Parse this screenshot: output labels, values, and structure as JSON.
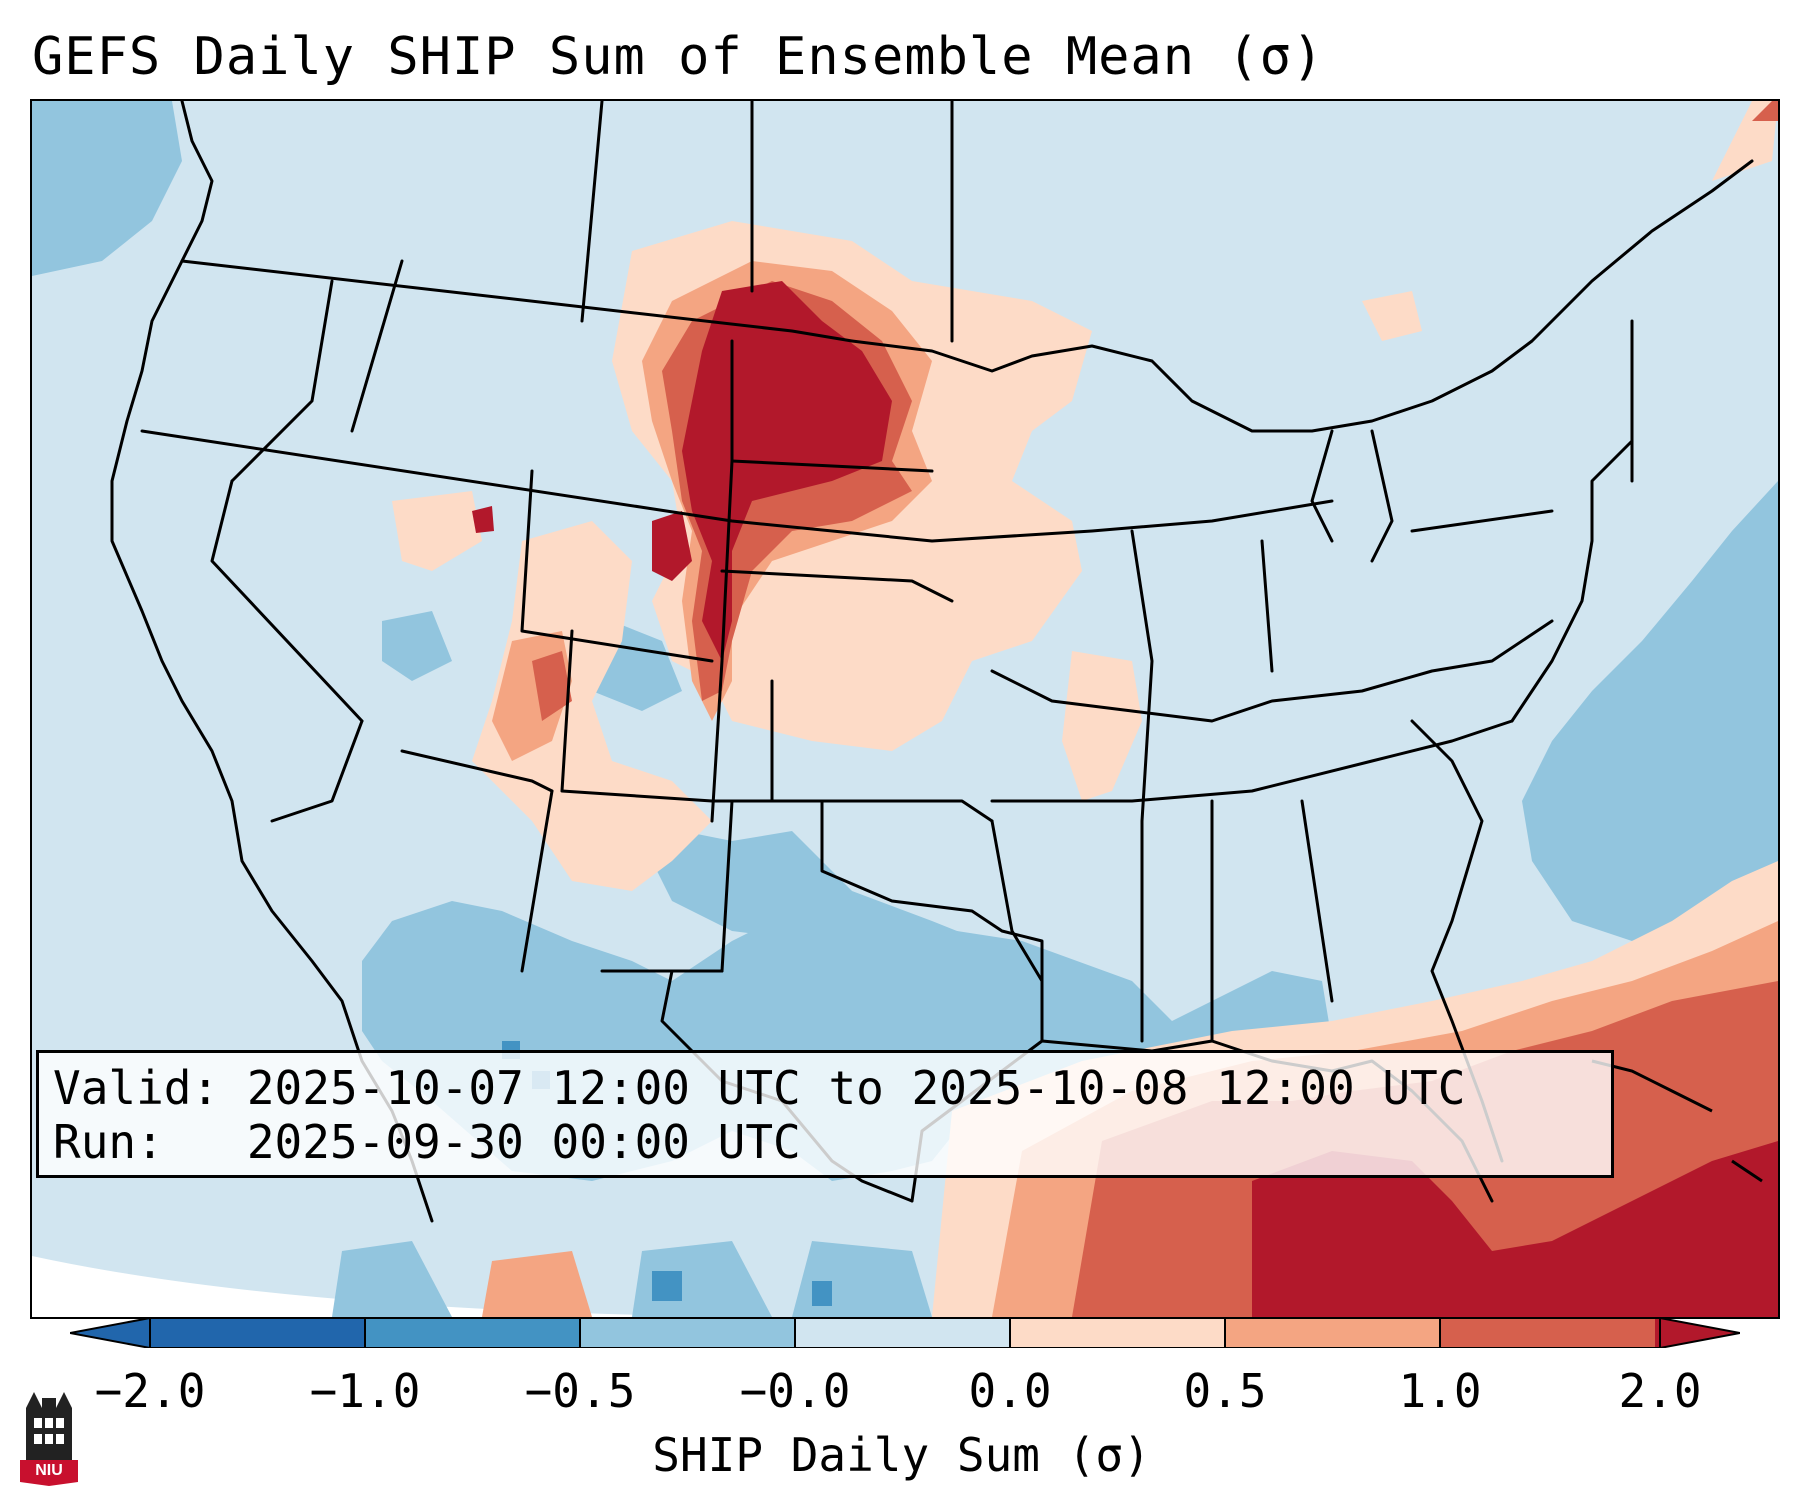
{
  "title": "GEFS Daily SHIP Sum of Ensemble Mean (σ)",
  "info": {
    "valid_line": "Valid: 2025-10-07 12:00 UTC to 2025-10-08 12:00 UTC",
    "run_line": "Run:   2025-09-30 00:00 UTC"
  },
  "colorbar": {
    "label": "SHIP Daily Sum (σ)",
    "extend": "both",
    "ticks": [
      "−2.0",
      "−1.0",
      "−0.5",
      "−0.0",
      "0.0",
      "0.5",
      "1.0",
      "2.0"
    ],
    "colors": [
      "#2166ac",
      "#4393c3",
      "#92c5de",
      "#d1e5f0",
      "#fddbc7",
      "#f4a582",
      "#d6604d",
      "#b2182b"
    ]
  },
  "map": {
    "region": "contiguous United States",
    "palette": {
      "background": "#d1e5f0",
      "strong_negative": "#4393c3",
      "negative": "#92c5de",
      "slight_positive": "#fddbc7",
      "positive": "#f4a582",
      "strong_positive": "#d6604d",
      "max_positive": "#b2182b",
      "outside_domain": "#ffffff"
    },
    "anomaly_regions": [
      {
        "area": "northern plains (Dakotas, eastern Montana, Wyoming, Nebraska panhandle)",
        "category": "max_positive"
      },
      {
        "area": "central plains / Kansas / Iowa",
        "category": "slight_positive"
      },
      {
        "area": "Colorado Plateau / Four Corners",
        "category": "slight_positive"
      },
      {
        "area": "Texas, Gulf Coast, Deep South",
        "category": "negative"
      },
      {
        "area": "western Atlantic offshore",
        "category": "negative"
      },
      {
        "area": "Gulf of Mexico / Caribbean / Cuba",
        "category": "max_positive"
      }
    ]
  },
  "logo": {
    "text": "NIU",
    "icon": "niu-tower-logo-icon",
    "color": "#c8102e"
  }
}
